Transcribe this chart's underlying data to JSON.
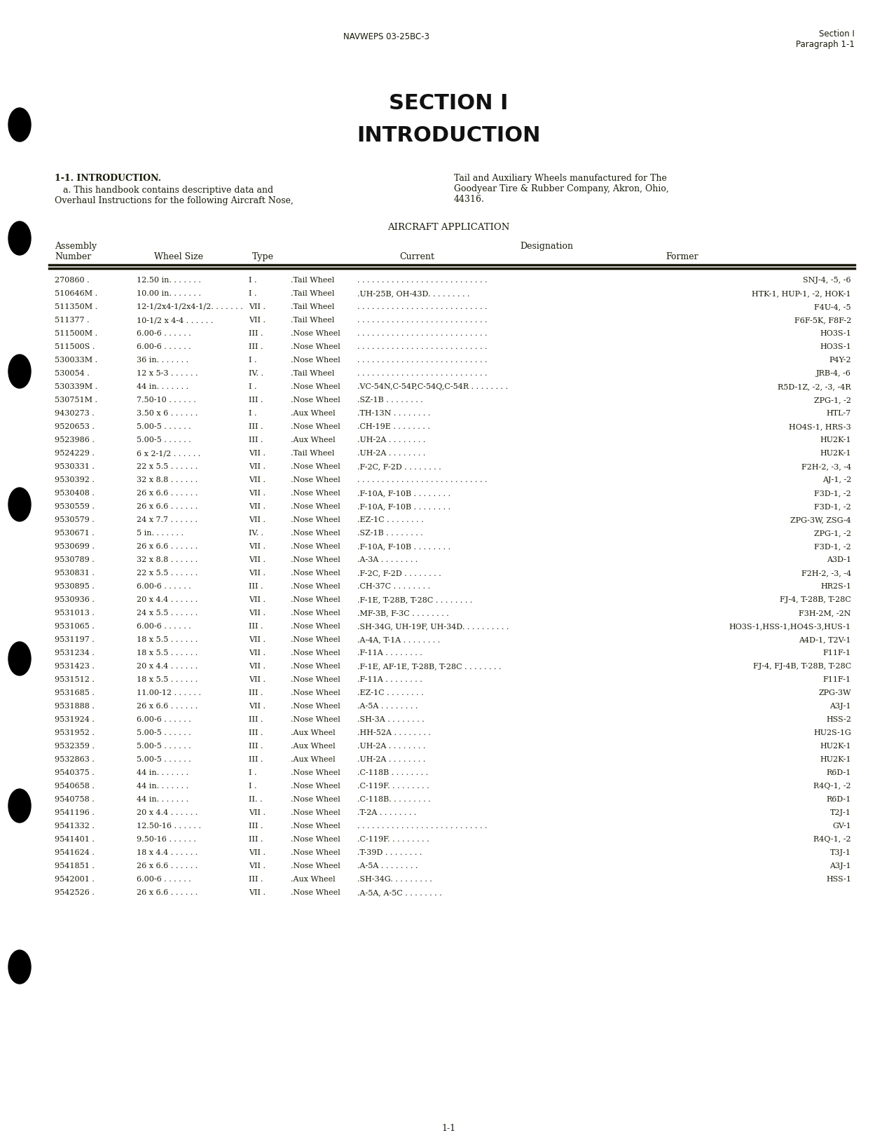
{
  "bg_color": "#ffffff",
  "text_color": "#1a1a0a",
  "page_header_left": "NAVWEPS 03-25BC-3",
  "page_header_right_line1": "Section I",
  "page_header_right_line2": "Paragraph 1-1",
  "title_line1": "SECTION I",
  "title_line2": "INTRODUCTION",
  "intro_heading": "1-1. INTRODUCTION.",
  "intro_col1_line1": "   a. This handbook contains descriptive data and",
  "intro_col1_line2": "Overhaul Instructions for the following Aircraft Nose,",
  "intro_col2_line1": "Tail and Auxiliary Wheels manufactured for The",
  "intro_col2_line2": "Goodyear Tire & Rubber Company, Akron, Ohio,",
  "intro_col2_line3": "44316.",
  "section_header": "AIRCRAFT APPLICATION",
  "page_footer": "1-1",
  "table_rows": [
    [
      "270860",
      "12.50 in.",
      "I",
      "Tail Wheel",
      "",
      "SNJ-4, -5, -6"
    ],
    [
      "510646M",
      "10.00 in.",
      "I",
      "Tail Wheel",
      "UH-25B, OH-43D.",
      "HTK-1, HUP-1, -2, HOK-1"
    ],
    [
      "511350M",
      "12-1/2x4-1/2x4-1/2.",
      "VII",
      "Tail Wheel",
      "",
      "F4U-4, -5"
    ],
    [
      "511377",
      "10-1/2 x 4-4",
      "VII",
      "Tail Wheel",
      "",
      "F6F-5K, F8F-2"
    ],
    [
      "511500M",
      "6.00-6",
      "III",
      "Nose Wheel",
      "",
      "HO3S-1"
    ],
    [
      "511500S",
      "6.00-6",
      "III",
      "Nose Wheel",
      "",
      "HO3S-1"
    ],
    [
      "530033M",
      "36 in.",
      "I",
      "Nose Wheel",
      "",
      "P4Y-2"
    ],
    [
      "530054",
      "12 x 5-3",
      "IV.",
      "Tail Wheel",
      "",
      "JRB-4, -6"
    ],
    [
      "530339M",
      "44 in.",
      "I",
      "Nose Wheel",
      "VC-54N,C-54P,C-54Q,C-54R",
      "R5D-1Z, -2, -3, -4R"
    ],
    [
      "530751M",
      "7.50-10",
      "III",
      "Nose Wheel",
      "SZ-1B",
      "ZPG-1, -2"
    ],
    [
      "9430273",
      "3.50 x 6",
      "I",
      "Aux Wheel",
      "TH-13N",
      "HTL-7"
    ],
    [
      "9520653",
      "5.00-5",
      "III",
      "Nose Wheel",
      "CH-19E",
      "HO4S-1, HRS-3"
    ],
    [
      "9523986",
      "5.00-5",
      "III",
      "Aux Wheel",
      "UH-2A",
      "HU2K-1"
    ],
    [
      "9524229",
      "6 x 2-1/2",
      "VII",
      "Tail Wheel",
      "UH-2A",
      "HU2K-1"
    ],
    [
      "9530331",
      "22 x 5.5",
      "VII",
      "Nose Wheel",
      "F-2C, F-2D",
      "F2H-2, -3, -4"
    ],
    [
      "9530392",
      "32 x 8.8",
      "VII",
      "Nose Wheel",
      "",
      "AJ-1, -2"
    ],
    [
      "9530408",
      "26 x 6.6",
      "VII",
      "Nose Wheel",
      "F-10A, F-10B",
      "F3D-1, -2"
    ],
    [
      "9530559",
      "26 x 6.6",
      "VII",
      "Nose Wheel",
      "F-10A, F-10B",
      "F3D-1, -2"
    ],
    [
      "9530579",
      "24 x 7.7",
      "VII",
      "Nose Wheel",
      "EZ-1C",
      "ZPG-3W, ZSG-4"
    ],
    [
      "9530671",
      "5 in.",
      "IV.",
      "Nose Wheel",
      "SZ-1B",
      "ZPG-1, -2"
    ],
    [
      "9530699",
      "26 x 6.6",
      "VII",
      "Nose Wheel",
      "F-10A, F-10B",
      "F3D-1, -2"
    ],
    [
      "9530789",
      "32 x 8.8",
      "VII",
      "Nose Wheel",
      "A-3A",
      "A3D-1"
    ],
    [
      "9530831",
      "22 x 5.5",
      "VII",
      "Nose Wheel",
      "F-2C, F-2D",
      "F2H-2, -3, -4"
    ],
    [
      "9530895",
      "6.00-6",
      "III",
      "Nose Wheel",
      "CH-37C",
      "HR2S-1"
    ],
    [
      "9530936",
      "20 x 4.4",
      "VII",
      "Nose Wheel",
      "F-1E, T-28B, T-28C",
      "FJ-4, T-28B, T-28C"
    ],
    [
      "9531013",
      "24 x 5.5",
      "VII",
      "Nose Wheel",
      "MF-3B, F-3C",
      "F3H-2M, -2N"
    ],
    [
      "9531065",
      "6.00-6",
      "III",
      "Nose Wheel",
      "SH-34G, UH-19F, UH-34D. .",
      "HO3S-1,HSS-1,HO4S-3,HUS-1"
    ],
    [
      "9531197",
      "18 x 5.5",
      "VII",
      "Nose Wheel",
      "A-4A, T-1A",
      "A4D-1, T2V-1"
    ],
    [
      "9531234",
      "18 x 5.5",
      "VII",
      "Nose Wheel",
      "F-11A",
      "F11F-1"
    ],
    [
      "9531423",
      "20 x 4.4",
      "VII",
      "Nose Wheel",
      "F-1E, AF-1E, T-28B, T-28C",
      "FJ-4, FJ-4B, T-28B, T-28C"
    ],
    [
      "9531512",
      "18 x 5.5",
      "VII",
      "Nose Wheel",
      "F-11A",
      "F11F-1"
    ],
    [
      "9531685",
      "11.00-12",
      "III",
      "Nose Wheel",
      "EZ-1C",
      "ZPG-3W"
    ],
    [
      "9531888",
      "26 x 6.6",
      "VII",
      "Nose Wheel",
      "A-5A",
      "A3J-1"
    ],
    [
      "9531924",
      "6.00-6",
      "III",
      "Nose Wheel",
      "SH-3A",
      "HSS-2"
    ],
    [
      "9531952",
      "5.00-5",
      "III",
      "Aux Wheel",
      "HH-52A",
      "HU2S-1G"
    ],
    [
      "9532359",
      "5.00-5",
      "III",
      "Aux Wheel",
      "UH-2A",
      "HU2K-1"
    ],
    [
      "9532863",
      "5.00-5",
      "III",
      "Aux Wheel",
      "UH-2A",
      "HU2K-1"
    ],
    [
      "9540375",
      "44 in.",
      "I",
      "Nose Wheel",
      "C-118B",
      "R6D-1"
    ],
    [
      "9540658",
      "44 in.",
      "I",
      "Nose Wheel",
      "C-119F.",
      "R4Q-1, -2"
    ],
    [
      "9540758",
      "44 in.",
      "II.",
      "Nose Wheel",
      "C-118B.",
      "R6D-1"
    ],
    [
      "9541196",
      "20 x 4.4",
      "VII",
      "Nose Wheel",
      "T-2A",
      "T2J-1"
    ],
    [
      "9541332",
      "12.50-16",
      "III",
      "Nose Wheel",
      "",
      "GV-1"
    ],
    [
      "9541401",
      "9.50-16",
      "III",
      "Nose Wheel",
      "C-119F.",
      "R4Q-1, -2"
    ],
    [
      "9541624",
      "18 x 4.4",
      "VII",
      "Nose Wheel",
      "T-39D",
      "T3J-1"
    ],
    [
      "9541851",
      "26 x 6.6",
      "VII",
      "Nose Wheel",
      "A-5A",
      "A3J-1"
    ],
    [
      "9542001",
      "6.00-6",
      "III",
      "Aux Wheel",
      "SH-34G.",
      "HSS-1"
    ],
    [
      "9542526",
      "26 x 6.6",
      "VII",
      "Nose Wheel",
      "A-5A, A-5C",
      ""
    ]
  ]
}
